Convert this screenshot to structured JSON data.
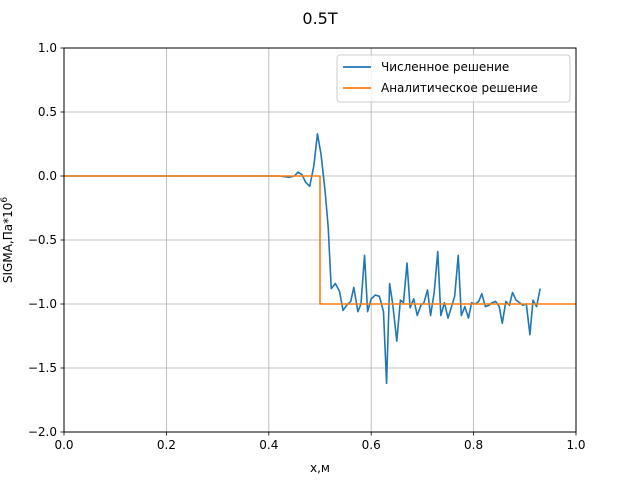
{
  "chart_data": {
    "type": "line",
    "title": "0.5T",
    "xlabel": "x,м",
    "ylabel": "SIGMA,Па*10^6",
    "ylabel_main": "SIGMA,Па*10",
    "ylabel_exp": "6",
    "xlim": [
      0.0,
      1.0
    ],
    "ylim": [
      -2.0,
      1.0
    ],
    "xticks": [
      0.0,
      0.2,
      0.4,
      0.6,
      0.8,
      1.0
    ],
    "xtick_labels": [
      "0.0",
      "0.2",
      "0.4",
      "0.6",
      "0.8",
      "1.0"
    ],
    "yticks": [
      1.0,
      0.5,
      0.0,
      -0.5,
      -1.0,
      -1.5,
      -2.0
    ],
    "ytick_labels": [
      "1.0",
      "0.5",
      "0.0",
      "−0.5",
      "−1.0",
      "−1.5",
      "−2.0"
    ],
    "grid": true,
    "legend_position": "upper right",
    "series": [
      {
        "name": "Численное решение",
        "color": "#1f77b4",
        "points": [
          [
            0.0,
            0.0
          ],
          [
            0.42,
            0.0
          ],
          [
            0.43,
            -0.005
          ],
          [
            0.44,
            -0.01
          ],
          [
            0.45,
            0.0
          ],
          [
            0.457,
            0.03
          ],
          [
            0.465,
            0.01
          ],
          [
            0.472,
            -0.05
          ],
          [
            0.48,
            -0.08
          ],
          [
            0.488,
            0.08
          ],
          [
            0.495,
            0.33
          ],
          [
            0.502,
            0.17
          ],
          [
            0.51,
            -0.12
          ],
          [
            0.516,
            -0.4
          ],
          [
            0.522,
            -0.88
          ],
          [
            0.53,
            -0.84
          ],
          [
            0.538,
            -0.9
          ],
          [
            0.545,
            -1.05
          ],
          [
            0.552,
            -1.01
          ],
          [
            0.56,
            -0.98
          ],
          [
            0.566,
            -0.87
          ],
          [
            0.574,
            -1.06
          ],
          [
            0.58,
            -1.0
          ],
          [
            0.587,
            -0.62
          ],
          [
            0.593,
            -1.06
          ],
          [
            0.6,
            -0.96
          ],
          [
            0.608,
            -0.93
          ],
          [
            0.616,
            -0.94
          ],
          [
            0.624,
            -1.06
          ],
          [
            0.63,
            -1.62
          ],
          [
            0.636,
            -0.84
          ],
          [
            0.642,
            -1.0
          ],
          [
            0.65,
            -1.29
          ],
          [
            0.657,
            -0.97
          ],
          [
            0.663,
            -0.99
          ],
          [
            0.67,
            -0.68
          ],
          [
            0.676,
            -1.03
          ],
          [
            0.683,
            -0.96
          ],
          [
            0.69,
            -1.09
          ],
          [
            0.697,
            -1.01
          ],
          [
            0.703,
            -0.99
          ],
          [
            0.71,
            -0.89
          ],
          [
            0.716,
            -1.09
          ],
          [
            0.723,
            -0.91
          ],
          [
            0.73,
            -0.59
          ],
          [
            0.736,
            -1.09
          ],
          [
            0.743,
            -0.99
          ],
          [
            0.75,
            -1.11
          ],
          [
            0.757,
            -1.02
          ],
          [
            0.763,
            -0.94
          ],
          [
            0.77,
            -0.62
          ],
          [
            0.776,
            -1.09
          ],
          [
            0.783,
            -1.02
          ],
          [
            0.79,
            -1.11
          ],
          [
            0.796,
            -0.99
          ],
          [
            0.803,
            -1.0
          ],
          [
            0.81,
            -0.98
          ],
          [
            0.816,
            -0.92
          ],
          [
            0.823,
            -1.02
          ],
          [
            0.83,
            -1.01
          ],
          [
            0.836,
            -0.99
          ],
          [
            0.843,
            -0.98
          ],
          [
            0.85,
            -1.02
          ],
          [
            0.856,
            -1.15
          ],
          [
            0.863,
            -0.98
          ],
          [
            0.87,
            -1.01
          ],
          [
            0.876,
            -0.91
          ],
          [
            0.883,
            -0.97
          ],
          [
            0.89,
            -0.99
          ],
          [
            0.896,
            -1.01
          ],
          [
            0.903,
            -1.0
          ],
          [
            0.91,
            -1.24
          ],
          [
            0.916,
            -0.97
          ],
          [
            0.923,
            -1.02
          ],
          [
            0.93,
            -0.88
          ]
        ]
      },
      {
        "name": "Аналитическое решение",
        "color": "#ff7f0e",
        "points": [
          [
            0.0,
            0.0
          ],
          [
            0.5,
            0.0
          ],
          [
            0.5,
            -1.0
          ],
          [
            1.0,
            -1.0
          ]
        ]
      }
    ]
  }
}
